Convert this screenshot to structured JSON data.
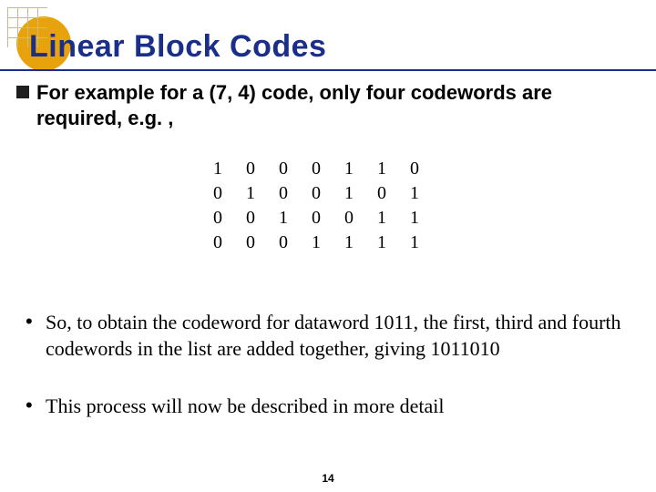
{
  "title": "Linear Block Codes",
  "intro": "For example for a (7, 4) code, only four codewords are required, e.g. ,",
  "matrix": [
    [
      "1",
      "0",
      "0",
      "0",
      "1",
      "1",
      "0"
    ],
    [
      "0",
      "1",
      "0",
      "0",
      "1",
      "0",
      "1"
    ],
    [
      "0",
      "0",
      "1",
      "0",
      "0",
      "1",
      "1"
    ],
    [
      "0",
      "0",
      "0",
      "1",
      "1",
      "1",
      "1"
    ]
  ],
  "point1": "So, to obtain the codeword for dataword 1011, the first, third and fourth codewords in the list are added together, giving 1011010",
  "point2": "This process will now be described in more detail",
  "pageNumber": "14",
  "colors": {
    "title": "#1b2f8a",
    "underline": "#1b2f8a",
    "logoCircle": "#e8a30c",
    "logoGrid": "#c9b890"
  }
}
